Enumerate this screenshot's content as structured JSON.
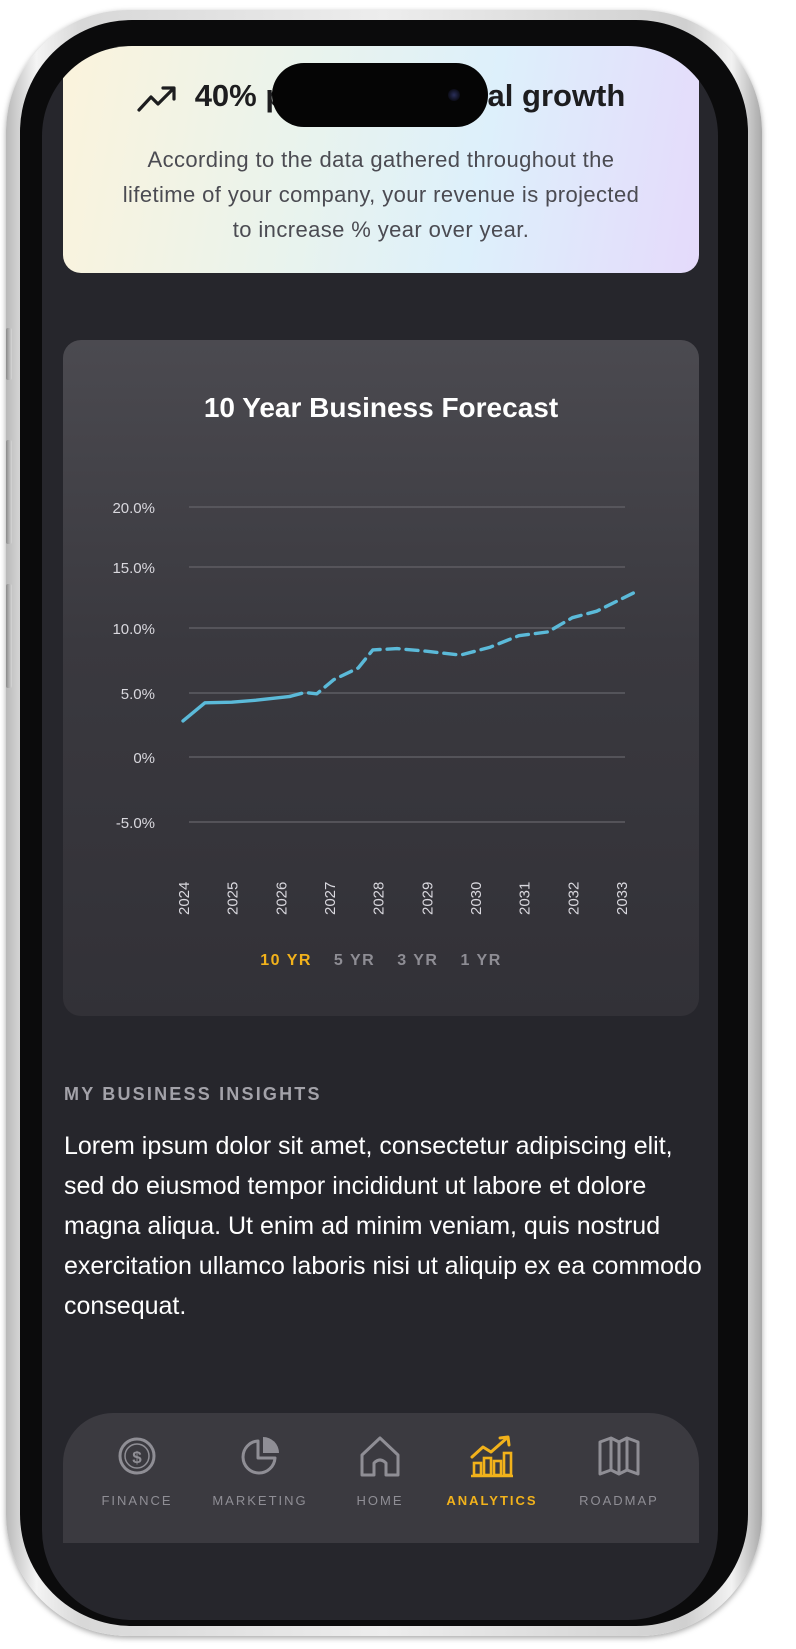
{
  "insight": {
    "title": "40% projected annual growth",
    "body": "According to the data gathered throughout the lifetime of your company, your revenue is projected to increase % year over year."
  },
  "chart": {
    "title": "10 Year Business Forecast",
    "ranges": [
      "10 YR",
      "5 YR",
      "3 YR",
      "1 YR"
    ],
    "active_range": "10 YR"
  },
  "chart_data": {
    "type": "line",
    "title": "10 Year Business Forecast",
    "xlabel": "",
    "ylabel": "",
    "x": [
      "2024",
      "2025",
      "2026",
      "2027",
      "2028",
      "2029",
      "2030",
      "2031",
      "2032",
      "2033"
    ],
    "y_ticks": [
      "20.0%",
      "15.0%",
      "10.0%",
      "5.0%",
      "0%",
      "-5.0%"
    ],
    "ylim": [
      -5,
      20
    ],
    "grid": true,
    "series": [
      {
        "style": "solid",
        "points": [
          {
            "x": 2024.0,
            "y": 2.8
          },
          {
            "x": 2024.45,
            "y": 4.2
          },
          {
            "x": 2025.0,
            "y": 4.25
          },
          {
            "x": 2025.5,
            "y": 4.4
          },
          {
            "x": 2026.2,
            "y": 4.7
          }
        ]
      },
      {
        "style": "dashed",
        "points": [
          {
            "x": 2026.2,
            "y": 4.7
          },
          {
            "x": 2026.5,
            "y": 5.0
          },
          {
            "x": 2026.75,
            "y": 4.9
          },
          {
            "x": 2027.1,
            "y": 6.0
          },
          {
            "x": 2027.6,
            "y": 6.9
          },
          {
            "x": 2027.9,
            "y": 8.3
          },
          {
            "x": 2028.4,
            "y": 8.4
          },
          {
            "x": 2029.0,
            "y": 8.2
          },
          {
            "x": 2029.7,
            "y": 7.9
          },
          {
            "x": 2030.3,
            "y": 8.5
          },
          {
            "x": 2030.9,
            "y": 9.4
          },
          {
            "x": 2031.5,
            "y": 9.7
          },
          {
            "x": 2032.0,
            "y": 10.8
          },
          {
            "x": 2032.5,
            "y": 11.3
          },
          {
            "x": 2033.3,
            "y": 12.8
          }
        ]
      }
    ],
    "line_color": "#5bbad9"
  },
  "insights_section": {
    "heading": "MY BUSINESS INSIGHTS",
    "body": "Lorem ipsum dolor sit amet, consectetur adipiscing elit, sed do eiusmod tempor incididunt ut labore et dolore magna aliqua. Ut enim ad minim veniam, quis nostrud exercitation ullamco laboris nisi ut aliquip ex ea commodo consequat."
  },
  "nav": {
    "items": [
      {
        "label": "FINANCE",
        "icon": "dollar-icon"
      },
      {
        "label": "MARKETING",
        "icon": "pie-chart-icon"
      },
      {
        "label": "HOME",
        "icon": "home-icon"
      },
      {
        "label": "ANALYTICS",
        "icon": "bar-chart-trend-icon"
      },
      {
        "label": "ROADMAP",
        "icon": "map-icon"
      }
    ],
    "active": "ANALYTICS"
  },
  "colors": {
    "accent": "#f2b21b",
    "background": "#26262c",
    "card": "#3a393f",
    "line": "#5bbad9"
  }
}
